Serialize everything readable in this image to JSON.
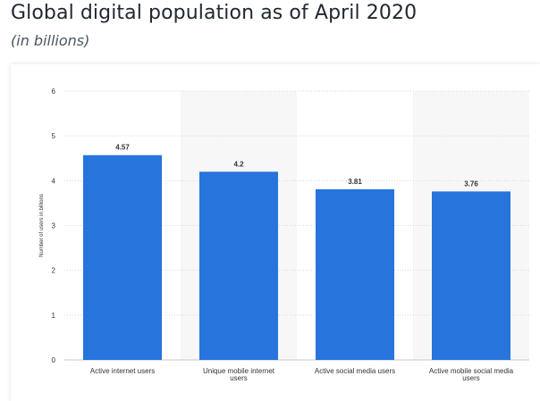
{
  "header": {
    "title": "Global digital population as of April 2020",
    "subtitle": "(in billions)"
  },
  "chart_data": {
    "type": "bar",
    "categories": [
      [
        "Active internet users"
      ],
      [
        "Unique mobile internet",
        "users"
      ],
      [
        "Active social media users"
      ],
      [
        "Active mobile social media",
        "users"
      ]
    ],
    "values": [
      4.57,
      4.2,
      3.81,
      3.76
    ],
    "value_labels": [
      "4.57",
      "4.2",
      "3.81",
      "3.76"
    ],
    "ylabel": "Number of users in billions",
    "ylim": [
      0,
      6
    ],
    "yticks": [
      "0",
      "1",
      "2",
      "3",
      "4",
      "5",
      "6"
    ],
    "grid": true,
    "bar_color": "#2674dc",
    "band_color": "#f7f7f7",
    "grid_color": "#d8d8d8"
  }
}
